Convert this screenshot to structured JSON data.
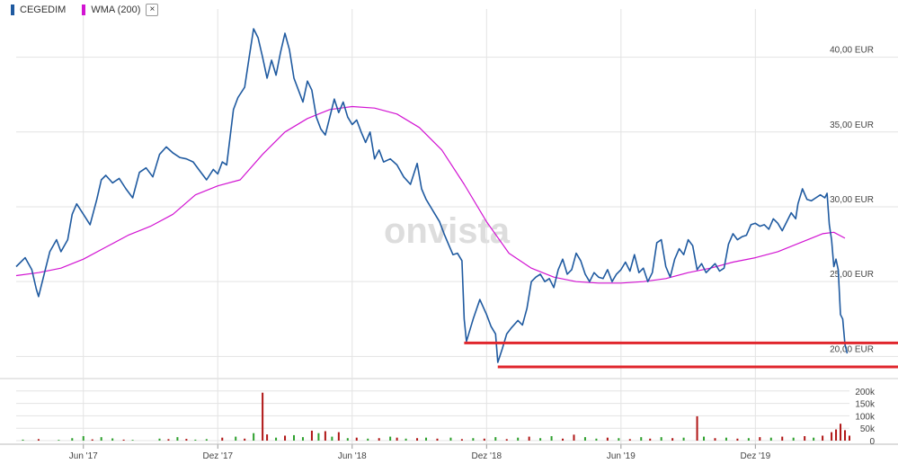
{
  "legend": {
    "series1_label": "CEGEDIM",
    "series2_label": "WMA (200)",
    "close_symbol": "×"
  },
  "watermark": "onvista",
  "colors": {
    "price": "#1f5aa0",
    "wma": "#d214d2",
    "support": "#e0262c",
    "vol_up": "#2ea02e",
    "vol_down": "#b01616",
    "grid": "#e3e3e3"
  },
  "chart_data": {
    "type": "line",
    "x_range": [
      "2017-03",
      "2020-03"
    ],
    "x_ticks": [
      {
        "t": 3.0,
        "label": "Jun '17"
      },
      {
        "t": 9.0,
        "label": "Dez '17"
      },
      {
        "t": 15.0,
        "label": "Jun '18"
      },
      {
        "t": 21.0,
        "label": "Dez '18"
      },
      {
        "t": 27.0,
        "label": "Jun '19"
      },
      {
        "t": 33.0,
        "label": "Dez '19"
      }
    ],
    "y_price_ticks": [
      {
        "v": 40,
        "label": "40,00 EUR"
      },
      {
        "v": 35,
        "label": "35,00 EUR"
      },
      {
        "v": 30,
        "label": "30,00 EUR"
      },
      {
        "v": 25,
        "label": "25,00 EUR"
      },
      {
        "v": 20,
        "label": "20,00 EUR"
      }
    ],
    "y_price_range": [
      18.7,
      42.5
    ],
    "y_volume_ticks": [
      {
        "v": 0,
        "label": "0"
      },
      {
        "v": 50000,
        "label": "50k"
      },
      {
        "v": 100000,
        "label": "100k"
      },
      {
        "v": 150000,
        "label": "150k"
      },
      {
        "v": 200000,
        "label": "200k"
      }
    ],
    "y_volume_range": [
      0,
      210000
    ],
    "series": [
      {
        "name": "CEGEDIM",
        "points": [
          [
            0.0,
            26.0
          ],
          [
            0.4,
            26.6
          ],
          [
            0.7,
            25.8
          ],
          [
            0.9,
            24.5
          ],
          [
            1.0,
            24.0
          ],
          [
            1.2,
            25.2
          ],
          [
            1.5,
            27.0
          ],
          [
            1.8,
            27.8
          ],
          [
            2.0,
            27.0
          ],
          [
            2.3,
            27.8
          ],
          [
            2.5,
            29.5
          ],
          [
            2.7,
            30.2
          ],
          [
            3.0,
            29.5
          ],
          [
            3.3,
            28.8
          ],
          [
            3.6,
            30.5
          ],
          [
            3.8,
            31.8
          ],
          [
            4.0,
            32.1
          ],
          [
            4.3,
            31.6
          ],
          [
            4.6,
            31.9
          ],
          [
            4.9,
            31.2
          ],
          [
            5.2,
            30.6
          ],
          [
            5.5,
            32.3
          ],
          [
            5.8,
            32.6
          ],
          [
            6.1,
            32.0
          ],
          [
            6.4,
            33.5
          ],
          [
            6.7,
            34.0
          ],
          [
            7.0,
            33.6
          ],
          [
            7.3,
            33.3
          ],
          [
            7.6,
            33.2
          ],
          [
            7.9,
            33.0
          ],
          [
            8.2,
            32.4
          ],
          [
            8.5,
            31.8
          ],
          [
            8.8,
            32.5
          ],
          [
            9.0,
            32.2
          ],
          [
            9.2,
            33.0
          ],
          [
            9.4,
            32.8
          ],
          [
            9.7,
            36.5
          ],
          [
            9.9,
            37.3
          ],
          [
            10.2,
            38.0
          ],
          [
            10.4,
            40.0
          ],
          [
            10.6,
            41.9
          ],
          [
            10.8,
            41.3
          ],
          [
            11.0,
            40.0
          ],
          [
            11.2,
            38.6
          ],
          [
            11.4,
            39.8
          ],
          [
            11.6,
            38.8
          ],
          [
            11.8,
            40.3
          ],
          [
            12.0,
            41.6
          ],
          [
            12.2,
            40.5
          ],
          [
            12.4,
            38.6
          ],
          [
            12.6,
            37.8
          ],
          [
            12.8,
            37.0
          ],
          [
            13.0,
            38.4
          ],
          [
            13.2,
            37.8
          ],
          [
            13.4,
            36.0
          ],
          [
            13.6,
            35.2
          ],
          [
            13.8,
            34.8
          ],
          [
            14.0,
            36.0
          ],
          [
            14.2,
            37.2
          ],
          [
            14.4,
            36.3
          ],
          [
            14.6,
            37.0
          ],
          [
            14.8,
            36.0
          ],
          [
            15.0,
            35.5
          ],
          [
            15.2,
            35.8
          ],
          [
            15.4,
            35.0
          ],
          [
            15.6,
            34.3
          ],
          [
            15.8,
            35.0
          ],
          [
            16.0,
            33.2
          ],
          [
            16.2,
            33.8
          ],
          [
            16.4,
            33.0
          ],
          [
            16.7,
            33.2
          ],
          [
            17.0,
            32.8
          ],
          [
            17.3,
            32.0
          ],
          [
            17.6,
            31.5
          ],
          [
            17.9,
            32.9
          ],
          [
            18.1,
            31.2
          ],
          [
            18.3,
            30.5
          ],
          [
            18.5,
            30.0
          ],
          [
            18.7,
            29.5
          ],
          [
            18.9,
            29.0
          ],
          [
            19.1,
            28.2
          ],
          [
            19.3,
            27.5
          ],
          [
            19.5,
            26.8
          ],
          [
            19.7,
            26.9
          ],
          [
            19.9,
            26.4
          ],
          [
            20.0,
            22.5
          ],
          [
            20.1,
            21.0
          ],
          [
            20.4,
            22.5
          ],
          [
            20.7,
            23.8
          ],
          [
            21.0,
            22.8
          ],
          [
            21.2,
            22.0
          ],
          [
            21.4,
            21.5
          ],
          [
            21.5,
            19.6
          ],
          [
            21.7,
            20.5
          ],
          [
            21.9,
            21.5
          ],
          [
            22.1,
            21.9
          ],
          [
            22.4,
            22.4
          ],
          [
            22.6,
            22.1
          ],
          [
            22.8,
            23.2
          ],
          [
            23.0,
            25.0
          ],
          [
            23.2,
            25.3
          ],
          [
            23.4,
            25.5
          ],
          [
            23.6,
            25.0
          ],
          [
            23.8,
            25.2
          ],
          [
            24.0,
            24.6
          ],
          [
            24.2,
            25.8
          ],
          [
            24.4,
            26.5
          ],
          [
            24.6,
            25.5
          ],
          [
            24.8,
            25.8
          ],
          [
            25.0,
            26.9
          ],
          [
            25.2,
            26.4
          ],
          [
            25.4,
            25.5
          ],
          [
            25.6,
            25.0
          ],
          [
            25.8,
            25.6
          ],
          [
            26.0,
            25.3
          ],
          [
            26.2,
            25.2
          ],
          [
            26.4,
            25.8
          ],
          [
            26.6,
            25.0
          ],
          [
            26.8,
            25.5
          ],
          [
            27.0,
            25.8
          ],
          [
            27.2,
            26.3
          ],
          [
            27.4,
            25.7
          ],
          [
            27.6,
            26.8
          ],
          [
            27.8,
            25.6
          ],
          [
            28.0,
            25.9
          ],
          [
            28.2,
            25.0
          ],
          [
            28.4,
            25.6
          ],
          [
            28.6,
            27.6
          ],
          [
            28.8,
            27.8
          ],
          [
            29.0,
            26.0
          ],
          [
            29.2,
            25.3
          ],
          [
            29.4,
            26.5
          ],
          [
            29.6,
            27.2
          ],
          [
            29.8,
            26.8
          ],
          [
            30.0,
            27.8
          ],
          [
            30.2,
            27.4
          ],
          [
            30.4,
            25.8
          ],
          [
            30.6,
            26.2
          ],
          [
            30.8,
            25.6
          ],
          [
            31.0,
            25.9
          ],
          [
            31.2,
            26.2
          ],
          [
            31.4,
            25.7
          ],
          [
            31.6,
            25.9
          ],
          [
            31.8,
            27.5
          ],
          [
            32.0,
            28.2
          ],
          [
            32.2,
            27.8
          ],
          [
            32.4,
            28.0
          ],
          [
            32.6,
            28.1
          ],
          [
            32.8,
            28.8
          ],
          [
            33.0,
            28.9
          ],
          [
            33.2,
            28.7
          ],
          [
            33.4,
            28.8
          ],
          [
            33.6,
            28.5
          ],
          [
            33.8,
            29.2
          ],
          [
            34.0,
            28.9
          ],
          [
            34.2,
            28.4
          ],
          [
            34.4,
            29.0
          ],
          [
            34.6,
            29.6
          ],
          [
            34.8,
            29.2
          ],
          [
            34.9,
            30.2
          ],
          [
            35.1,
            31.2
          ],
          [
            35.3,
            30.5
          ],
          [
            35.5,
            30.4
          ],
          [
            35.7,
            30.6
          ],
          [
            35.9,
            30.8
          ],
          [
            36.1,
            30.6
          ],
          [
            36.2,
            30.9
          ],
          [
            36.3,
            28.8
          ],
          [
            36.4,
            27.8
          ],
          [
            36.5,
            26.0
          ],
          [
            36.6,
            26.5
          ],
          [
            36.7,
            25.8
          ],
          [
            36.8,
            22.8
          ],
          [
            36.9,
            22.5
          ],
          [
            37.0,
            20.8
          ],
          [
            37.1,
            20.2
          ]
        ]
      },
      {
        "name": "WMA (200)",
        "points": [
          [
            0.0,
            25.4
          ],
          [
            1.0,
            25.6
          ],
          [
            2.0,
            25.9
          ],
          [
            3.0,
            26.5
          ],
          [
            4.0,
            27.3
          ],
          [
            5.0,
            28.1
          ],
          [
            6.0,
            28.7
          ],
          [
            7.0,
            29.5
          ],
          [
            8.0,
            30.8
          ],
          [
            9.0,
            31.4
          ],
          [
            10.0,
            31.8
          ],
          [
            11.0,
            33.5
          ],
          [
            12.0,
            35.0
          ],
          [
            13.0,
            35.9
          ],
          [
            14.0,
            36.5
          ],
          [
            15.0,
            36.7
          ],
          [
            16.0,
            36.6
          ],
          [
            17.0,
            36.2
          ],
          [
            18.0,
            35.3
          ],
          [
            19.0,
            33.8
          ],
          [
            20.0,
            31.5
          ],
          [
            21.0,
            29.0
          ],
          [
            22.0,
            26.9
          ],
          [
            23.0,
            25.9
          ],
          [
            24.0,
            25.3
          ],
          [
            25.0,
            25.0
          ],
          [
            26.0,
            24.9
          ],
          [
            27.0,
            24.9
          ],
          [
            28.0,
            25.0
          ],
          [
            29.0,
            25.2
          ],
          [
            30.0,
            25.6
          ],
          [
            31.0,
            25.9
          ],
          [
            32.0,
            26.3
          ],
          [
            33.0,
            26.6
          ],
          [
            34.0,
            27.0
          ],
          [
            35.0,
            27.6
          ],
          [
            36.0,
            28.2
          ],
          [
            36.5,
            28.3
          ],
          [
            37.0,
            27.9
          ]
        ]
      }
    ],
    "support_lines": [
      {
        "v": 20.9,
        "from": 20.0,
        "to": 37.5
      },
      {
        "v": 19.3,
        "from": 21.5,
        "to": 37.5
      }
    ],
    "volume_bars": [
      [
        0.3,
        4000,
        "u"
      ],
      [
        1.0,
        6000,
        "d"
      ],
      [
        1.9,
        3000,
        "u"
      ],
      [
        2.5,
        10000,
        "u"
      ],
      [
        3.0,
        18000,
        "u"
      ],
      [
        3.4,
        5000,
        "d"
      ],
      [
        3.8,
        14000,
        "u"
      ],
      [
        4.3,
        9000,
        "u"
      ],
      [
        4.8,
        4000,
        "d"
      ],
      [
        5.2,
        3000,
        "u"
      ],
      [
        6.4,
        8000,
        "u"
      ],
      [
        6.8,
        6000,
        "d"
      ],
      [
        7.2,
        14000,
        "u"
      ],
      [
        7.6,
        7000,
        "d"
      ],
      [
        8.0,
        4000,
        "u"
      ],
      [
        8.5,
        6000,
        "u"
      ],
      [
        9.2,
        12000,
        "d"
      ],
      [
        9.8,
        16000,
        "u"
      ],
      [
        10.2,
        8000,
        "d"
      ],
      [
        10.6,
        30000,
        "u"
      ],
      [
        11.0,
        193000,
        "d"
      ],
      [
        11.2,
        25000,
        "d"
      ],
      [
        11.6,
        12000,
        "u"
      ],
      [
        12.0,
        20000,
        "d"
      ],
      [
        12.4,
        22000,
        "u"
      ],
      [
        12.8,
        14000,
        "u"
      ],
      [
        13.2,
        40000,
        "d"
      ],
      [
        13.5,
        30000,
        "u"
      ],
      [
        13.8,
        38000,
        "d"
      ],
      [
        14.1,
        16000,
        "u"
      ],
      [
        14.4,
        34000,
        "d"
      ],
      [
        14.8,
        10000,
        "u"
      ],
      [
        15.2,
        12000,
        "d"
      ],
      [
        15.7,
        8000,
        "u"
      ],
      [
        16.2,
        10000,
        "d"
      ],
      [
        16.7,
        16000,
        "u"
      ],
      [
        17.0,
        12000,
        "d"
      ],
      [
        17.4,
        8000,
        "u"
      ],
      [
        17.9,
        10000,
        "d"
      ],
      [
        18.3,
        12000,
        "u"
      ],
      [
        18.8,
        8000,
        "d"
      ],
      [
        19.4,
        12000,
        "u"
      ],
      [
        19.9,
        6000,
        "d"
      ],
      [
        20.4,
        10000,
        "u"
      ],
      [
        20.9,
        8000,
        "d"
      ],
      [
        21.4,
        14000,
        "u"
      ],
      [
        21.9,
        6000,
        "d"
      ],
      [
        22.4,
        12000,
        "u"
      ],
      [
        22.9,
        16000,
        "d"
      ],
      [
        23.4,
        10000,
        "u"
      ],
      [
        23.9,
        18000,
        "u"
      ],
      [
        24.4,
        8000,
        "d"
      ],
      [
        24.9,
        24000,
        "d"
      ],
      [
        25.4,
        14000,
        "u"
      ],
      [
        25.9,
        8000,
        "u"
      ],
      [
        26.4,
        12000,
        "d"
      ],
      [
        26.9,
        10000,
        "u"
      ],
      [
        27.4,
        6000,
        "d"
      ],
      [
        27.9,
        14000,
        "u"
      ],
      [
        28.3,
        8000,
        "d"
      ],
      [
        28.8,
        14000,
        "u"
      ],
      [
        29.3,
        10000,
        "d"
      ],
      [
        29.8,
        12000,
        "u"
      ],
      [
        30.4,
        98000,
        "d"
      ],
      [
        30.7,
        16000,
        "u"
      ],
      [
        31.2,
        10000,
        "d"
      ],
      [
        31.7,
        12000,
        "u"
      ],
      [
        32.2,
        8000,
        "d"
      ],
      [
        32.7,
        10000,
        "u"
      ],
      [
        33.2,
        14000,
        "d"
      ],
      [
        33.7,
        12000,
        "u"
      ],
      [
        34.2,
        16000,
        "d"
      ],
      [
        34.7,
        12000,
        "u"
      ],
      [
        35.2,
        18000,
        "d"
      ],
      [
        35.6,
        12000,
        "u"
      ],
      [
        36.0,
        20000,
        "d"
      ],
      [
        36.4,
        34000,
        "d"
      ],
      [
        36.6,
        45000,
        "d"
      ],
      [
        36.8,
        68000,
        "d"
      ],
      [
        37.0,
        42000,
        "d"
      ],
      [
        37.2,
        20000,
        "d"
      ]
    ]
  }
}
